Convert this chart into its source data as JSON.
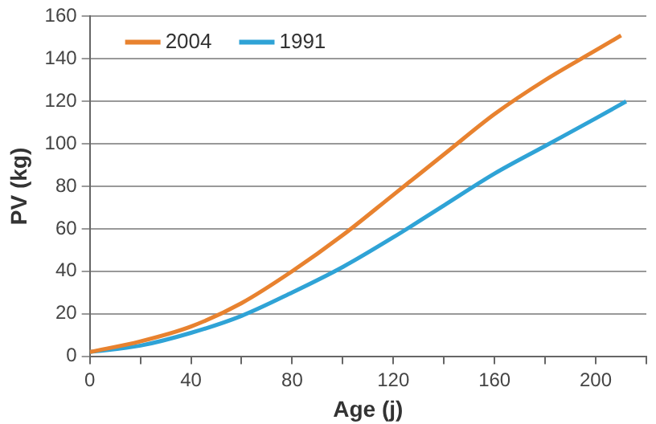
{
  "chart_data": {
    "type": "line",
    "xlabel": "Age (j)",
    "ylabel": "PV (kg)",
    "xlim": [
      0,
      220
    ],
    "xticks": [
      0,
      {
        "value": 20,
        "label": null
      },
      40,
      {
        "value": 60,
        "label": null
      },
      80,
      {
        "value": 100,
        "label": null
      },
      120,
      {
        "value": 140,
        "label": null
      },
      160,
      {
        "value": 180,
        "label": null
      },
      200,
      {
        "value": 220,
        "label": null
      }
    ],
    "ylim": [
      0,
      160
    ],
    "yticks": [
      0,
      20,
      40,
      60,
      80,
      100,
      120,
      140,
      160
    ],
    "grid": "y",
    "legend": "top",
    "marker": "none",
    "series": [
      {
        "name": "2004",
        "color": "#e8822f",
        "x": [
          0,
          20,
          40,
          60,
          80,
          100,
          120,
          140,
          160,
          180,
          200,
          210
        ],
        "values": [
          2,
          7,
          14,
          25,
          40,
          57,
          76,
          95,
          114,
          130,
          144,
          151
        ]
      },
      {
        "name": "1991",
        "color": "#2fa3d6",
        "x": [
          0,
          20,
          40,
          60,
          80,
          100,
          120,
          140,
          160,
          180,
          200,
          212
        ],
        "values": [
          2,
          5,
          11,
          19,
          30,
          42,
          56,
          71,
          86,
          99,
          112,
          120
        ]
      }
    ]
  }
}
